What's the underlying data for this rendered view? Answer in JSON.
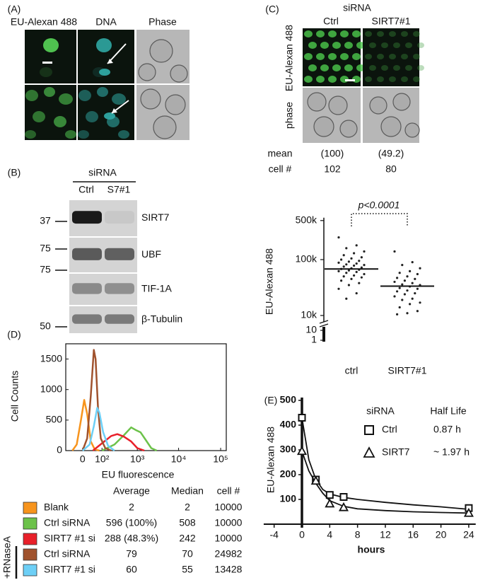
{
  "panel_a": {
    "label": "(A)",
    "columns": [
      "EU-Alexan 488",
      "DNA",
      "Phase"
    ]
  },
  "panel_b": {
    "label": "(B)",
    "group_label": "siRNA",
    "lanes": [
      "Ctrl",
      "S7#1"
    ],
    "bands": [
      {
        "name": "SIRT7",
        "marker": "37"
      },
      {
        "name": "UBF",
        "marker": "75"
      },
      {
        "name": "TIF-1A",
        "marker": "75"
      },
      {
        "name": "β-Tubulin",
        "marker": "50"
      }
    ]
  },
  "panel_c": {
    "label": "(C)",
    "group_label": "siRNA",
    "columns": [
      "Ctrl",
      "SIRT7#1"
    ],
    "rows": [
      "EU-Alexan 488",
      "phase"
    ],
    "stats": [
      {
        "name": "mean",
        "values": [
          "(100)",
          "(49.2)"
        ]
      },
      {
        "name": "cell #",
        "values": [
          "102",
          "80"
        ]
      }
    ]
  },
  "panel_d": {
    "label": "(D)"
  },
  "panel_e": {
    "label": "(E)"
  },
  "chart_data": [
    {
      "type": "strip",
      "y_label": "EU-Alexan 488",
      "categories": [
        "ctrl",
        "SIRT7#1"
      ],
      "log_scale": true,
      "axis_break": true,
      "ylim": [
        1,
        500000
      ],
      "yticks": [
        {
          "value": 500000,
          "label": "500k"
        },
        {
          "value": 100000,
          "label": "100k"
        },
        {
          "value": 10000,
          "label": "10k"
        },
        10,
        1
      ],
      "values": [
        [
          250000,
          180000,
          160000,
          140000,
          130000,
          120000,
          110000,
          105000,
          100000,
          95000,
          92000,
          88000,
          85000,
          82000,
          80000,
          78000,
          75000,
          72000,
          70000,
          68000,
          66000,
          64000,
          62000,
          60000,
          58000,
          55000,
          52000,
          50000,
          48000,
          45000,
          42000,
          38000,
          35000,
          30000,
          25000,
          20000
        ],
        [
          140000,
          90000,
          80000,
          70000,
          62000,
          58000,
          55000,
          50000,
          47000,
          45000,
          42000,
          40000,
          38000,
          36000,
          35000,
          33000,
          31000,
          30000,
          28000,
          27000,
          25000,
          24000,
          22000,
          20000,
          19000,
          17000,
          16000,
          14000,
          12000,
          11000,
          10500
        ]
      ],
      "means": [
        68000,
        33500
      ],
      "annotation": "p<0.0001",
      "color": "#222222"
    },
    {
      "type": "line",
      "x_label": "EU fluorescence",
      "y_label": "Cell Counts",
      "xscale": "symlog",
      "xlim": [
        -80,
        136000
      ],
      "xticks": [
        0,
        {
          "value": 100,
          "label": "10²"
        },
        {
          "value": 1000,
          "label": "10³"
        },
        {
          "value": 10000,
          "label": "10⁴"
        },
        {
          "value": 100000,
          "label": "10⁵"
        }
      ],
      "ylim": [
        0,
        1750
      ],
      "yticks": [
        0,
        500,
        1000,
        1500
      ],
      "table_header": [
        "Average",
        "Median",
        "cell #"
      ],
      "table_group_label": "+RNaseA",
      "series": [
        {
          "name": "Blank",
          "color": "#f7941d",
          "x": [
            -40,
            -20,
            -5,
            5,
            15,
            30,
            50,
            80
          ],
          "values": [
            0,
            100,
            500,
            830,
            600,
            150,
            20,
            0
          ],
          "table_values": [
            "2",
            "2",
            "10000"
          ]
        },
        {
          "name": "Ctrl siRNA",
          "color": "#6cc24a",
          "x": [
            100,
            250,
            450,
            700,
            900,
            1200,
            1600,
            2200,
            3000
          ],
          "values": [
            0,
            100,
            250,
            380,
            340,
            300,
            180,
            40,
            0
          ],
          "table_values": [
            "596 (100%)",
            "508",
            "10000"
          ]
        },
        {
          "name": "SIRT7 #1 si",
          "color": "#e8202a",
          "x": [
            40,
            100,
            200,
            300,
            450,
            700,
            1000,
            1500
          ],
          "values": [
            0,
            120,
            240,
            270,
            230,
            150,
            40,
            0
          ],
          "table_values": [
            "288 (48.3%)",
            "242",
            "10000"
          ]
        },
        {
          "name": "Ctrl siRNA",
          "color": "#a0522d",
          "x": [
            0,
            15,
            30,
            45,
            55,
            70,
            90,
            130,
            200
          ],
          "values": [
            0,
            200,
            900,
            1650,
            1500,
            700,
            200,
            40,
            0
          ],
          "table_values": [
            "79",
            "70",
            "24982"
          ]
        },
        {
          "name": "SIRT7 #1 si",
          "color": "#6dcff6",
          "x": [
            0,
            25,
            45,
            65,
            80,
            110,
            160,
            250
          ],
          "values": [
            0,
            100,
            400,
            700,
            620,
            300,
            80,
            0
          ],
          "table_values": [
            "60",
            "55",
            "13428"
          ]
        }
      ]
    },
    {
      "type": "line",
      "x_label": "hours",
      "y_label": "EU-Alexan 488",
      "legend_title": "siRNA",
      "half_life_header": "Half Life",
      "xlim": [
        -5.5,
        25
      ],
      "xticks": [
        -4,
        0,
        4,
        8,
        12,
        16,
        20,
        24
      ],
      "ylim": [
        0,
        500
      ],
      "yticks": [
        100,
        200,
        300,
        400,
        500
      ],
      "series": [
        {
          "name": "Ctrl",
          "marker": "square",
          "color": "#111111",
          "half_life": "0.87 h",
          "x": [
            0,
            2,
            4,
            6,
            24
          ],
          "values": [
            430,
            180,
            118,
            110,
            65
          ],
          "fit": {
            "x": [
              0,
              1,
              2,
              3,
              4,
              6,
              8,
              12,
              16,
              20,
              24
            ],
            "values": [
              430,
              260,
              180,
              140,
              122,
              108,
              100,
              88,
              78,
              70,
              60
            ]
          }
        },
        {
          "name": "SIRT7",
          "marker": "triangle",
          "color": "#111111",
          "half_life": "~ 1.97 h",
          "x": [
            0,
            2,
            4,
            6,
            24
          ],
          "values": [
            295,
            175,
            83,
            68,
            45
          ],
          "fit": {
            "x": [
              0,
              1,
              2,
              3,
              4,
              6,
              8,
              12,
              16,
              20,
              24
            ],
            "values": [
              295,
              215,
              165,
              125,
              95,
              72,
              62,
              55,
              50,
              47,
              45
            ]
          }
        }
      ]
    }
  ]
}
